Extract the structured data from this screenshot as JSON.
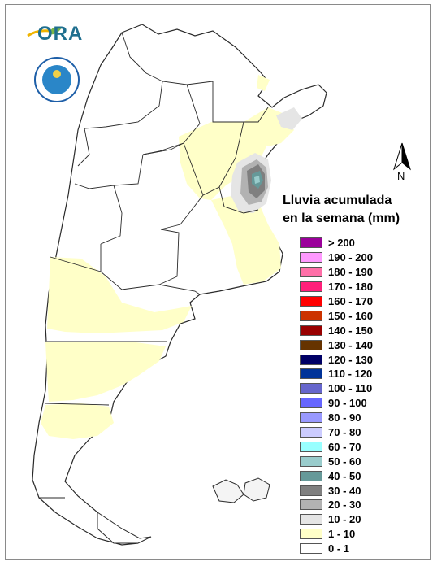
{
  "legend": {
    "title_line1": "Lluvia acumulada",
    "title_line2": "en la semana (mm)",
    "items": [
      {
        "label": "> 200",
        "color": "#9b009b"
      },
      {
        "label": "190 - 200",
        "color": "#ff99ff"
      },
      {
        "label": "180 - 190",
        "color": "#ff6fa8"
      },
      {
        "label": "170 - 180",
        "color": "#ff1f7a"
      },
      {
        "label": "160 - 170",
        "color": "#ff0000"
      },
      {
        "label": "150 - 160",
        "color": "#cc3300"
      },
      {
        "label": "140 - 150",
        "color": "#990000"
      },
      {
        "label": "130 - 140",
        "color": "#663300"
      },
      {
        "label": "120 - 130",
        "color": "#000066"
      },
      {
        "label": "110 - 120",
        "color": "#003399"
      },
      {
        "label": "100 - 110",
        "color": "#6666cc"
      },
      {
        "label": "90 - 100",
        "color": "#6666ff"
      },
      {
        "label": "80 - 90",
        "color": "#9999ff"
      },
      {
        "label": "70 - 80",
        "color": "#ccccff"
      },
      {
        "label": "60 - 70",
        "color": "#99ffff"
      },
      {
        "label": "50 - 60",
        "color": "#99cccc"
      },
      {
        "label": "40 - 50",
        "color": "#669999"
      },
      {
        "label": "30 - 40",
        "color": "#7f7f7f"
      },
      {
        "label": "20 - 30",
        "color": "#b2b2b2"
      },
      {
        "label": "10 - 20",
        "color": "#e5e5e5"
      },
      {
        "label": "1 - 10",
        "color": "#ffffc8"
      },
      {
        "label": "0 - 1",
        "color": "#ffffff"
      }
    ]
  },
  "branding": {
    "logo_text": "ORA"
  },
  "north_arrow": {
    "label": "N"
  },
  "colors": {
    "outline": "#2a2a2a",
    "light_rain": "#ffffc8",
    "band_10_20": "#e5e5e5",
    "band_20_30": "#b2b2b2",
    "band_30_40": "#7f7f7f",
    "band_40_50": "#669999",
    "band_50_60": "#99cccc"
  }
}
